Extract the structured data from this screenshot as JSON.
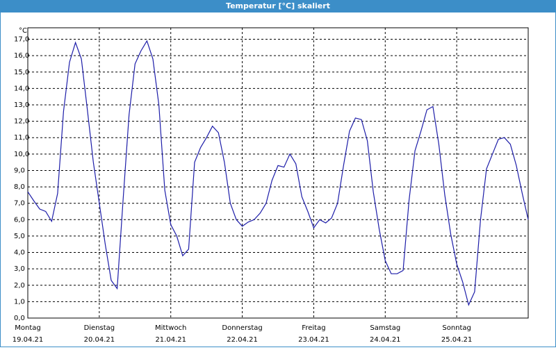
{
  "chart_data": {
    "type": "line",
    "title": "Temperatur [°C] skaliert",
    "y_label": "°C",
    "xlim": [
      0,
      168
    ],
    "ylim": [
      0,
      17.7
    ],
    "grid": true,
    "xticks": [
      {
        "value": 0,
        "label": "Montag"
      },
      {
        "value": 24,
        "label": "Dienstag"
      },
      {
        "value": 48,
        "label": "Mittwoch"
      },
      {
        "value": 72,
        "label": "Donnerstag"
      },
      {
        "value": 96,
        "label": "Freitag"
      },
      {
        "value": 120,
        "label": "Samstag"
      },
      {
        "value": 144,
        "label": "Sonntag"
      }
    ],
    "xtick_dates": [
      "19.04.21",
      "20.04.21",
      "21.04.21",
      "22.04.21",
      "23.04.21",
      "24.04.21",
      "25.04.21"
    ],
    "yticks": [
      {
        "value": 0,
        "label": "0,0"
      },
      {
        "value": 1,
        "label": "1,0"
      },
      {
        "value": 2,
        "label": "2,0"
      },
      {
        "value": 3,
        "label": "3,0"
      },
      {
        "value": 4,
        "label": "4,0"
      },
      {
        "value": 5,
        "label": "5,0"
      },
      {
        "value": 6,
        "label": "6,0"
      },
      {
        "value": 7,
        "label": "7,0"
      },
      {
        "value": 8,
        "label": "8,0"
      },
      {
        "value": 9,
        "label": "9,0"
      },
      {
        "value": 10,
        "label": "10,0"
      },
      {
        "value": 11,
        "label": "11,0"
      },
      {
        "value": 12,
        "label": "12,0"
      },
      {
        "value": 13,
        "label": "13,0"
      },
      {
        "value": 14,
        "label": "14,0"
      },
      {
        "value": 15,
        "label": "15,0"
      },
      {
        "value": 16,
        "label": "16,0"
      },
      {
        "value": 17,
        "label": "17,0"
      }
    ],
    "series": [
      {
        "color": "#1c1ca8",
        "x": [
          0,
          2,
          4,
          6,
          8,
          10,
          12,
          14,
          16,
          18,
          20,
          22,
          24,
          26,
          28,
          30,
          32,
          34,
          36,
          38,
          40,
          42,
          44,
          46,
          48,
          50,
          52,
          54,
          56,
          58,
          60,
          62,
          64,
          66,
          68,
          70,
          72,
          74,
          76,
          78,
          80,
          82,
          84,
          86,
          88,
          90,
          92,
          94,
          96,
          98,
          100,
          102,
          104,
          106,
          108,
          110,
          112,
          114,
          116,
          118,
          120,
          122,
          124,
          126,
          128,
          130,
          132,
          134,
          136,
          138,
          140,
          142,
          144,
          146,
          148,
          150,
          152,
          154,
          156,
          158,
          160,
          162,
          164,
          166,
          168
        ],
        "values": [
          7.7,
          7.15,
          6.65,
          6.5,
          5.9,
          7.6,
          12.6,
          15.6,
          16.8,
          15.8,
          12.7,
          9.5,
          7.0,
          4.5,
          2.3,
          1.8,
          7.2,
          12.4,
          15.5,
          16.3,
          16.9,
          15.8,
          13.0,
          7.8,
          5.7,
          5.0,
          3.8,
          4.2,
          9.5,
          10.4,
          11.0,
          11.7,
          11.3,
          9.5,
          7.0,
          6.0,
          5.6,
          5.85,
          6.0,
          6.4,
          7.0,
          8.4,
          9.3,
          9.2,
          10.0,
          9.4,
          7.4,
          6.5,
          5.5,
          6.0,
          5.8,
          6.1,
          7.0,
          9.3,
          11.4,
          12.2,
          12.1,
          10.8,
          7.7,
          5.4,
          3.5,
          2.7,
          2.7,
          2.9,
          7.2,
          10.2,
          11.4,
          12.7,
          12.9,
          10.6,
          7.5,
          5.1,
          3.3,
          2.2,
          0.8,
          1.6,
          6.0,
          9.1,
          10.0,
          10.9,
          11.0,
          10.6,
          9.3,
          7.6,
          6.0
        ]
      }
    ]
  }
}
